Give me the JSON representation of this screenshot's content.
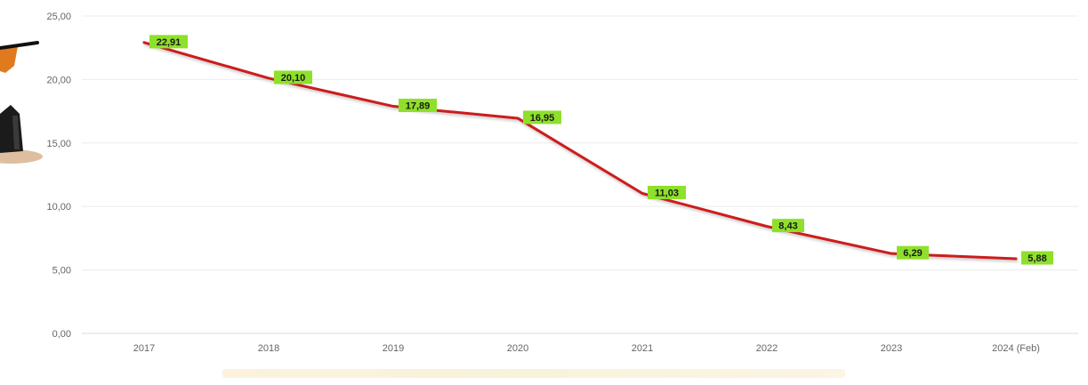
{
  "chart_data": {
    "type": "line",
    "categories": [
      "2017",
      "2018",
      "2019",
      "2020",
      "2021",
      "2022",
      "2023",
      "2024 (Feb)"
    ],
    "series": [
      {
        "values": [
          22.91,
          20.1,
          17.89,
          16.95,
          11.03,
          8.43,
          6.29,
          5.88
        ]
      }
    ],
    "data_labels": [
      "22,91",
      "20,10",
      "17,89",
      "16,95",
      "11,03",
      "8,43",
      "6,29",
      "5,88"
    ],
    "y_ticks": [
      "0,00",
      "5,00",
      "10,00",
      "15,00",
      "20,00",
      "25,00"
    ],
    "ylim": [
      0,
      25
    ],
    "grid": true,
    "line_color": "#cc1f1a",
    "label_bg_color": "#8ee02a",
    "axis_color": "#d9d9d9"
  }
}
